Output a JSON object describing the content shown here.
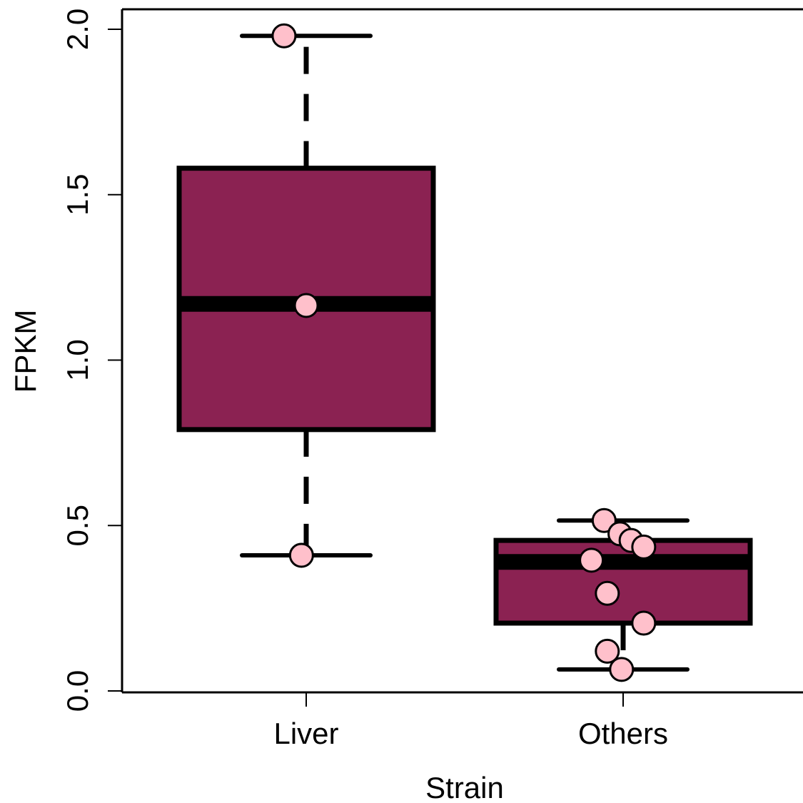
{
  "chart_data": {
    "type": "boxplot",
    "xlabel": "Strain",
    "ylabel": "FPKM",
    "ylim": [
      0.0,
      2.0
    ],
    "yticks": [
      0.0,
      0.5,
      1.0,
      1.5,
      2.0
    ],
    "ytick_labels": [
      "0.0",
      "0.5",
      "1.0",
      "1.5",
      "2.0"
    ],
    "categories": [
      "Liver",
      "Others"
    ],
    "colors": {
      "box_fill": "#8B2252",
      "box_stroke": "#000000",
      "point_fill": "#FFC0CB",
      "point_stroke": "#000000"
    },
    "boxes": [
      {
        "category": "Liver",
        "whisker_low": 0.41,
        "q1": 0.79,
        "median": 1.17,
        "q3": 1.58,
        "whisker_high": 1.98
      },
      {
        "category": "Others",
        "whisker_low": 0.065,
        "q1": 0.205,
        "median": 0.39,
        "q3": 0.455,
        "whisker_high": 0.515
      }
    ],
    "points": [
      {
        "category": "Liver",
        "y": 1.98,
        "jitter": -0.07
      },
      {
        "category": "Liver",
        "y": 1.165,
        "jitter": 0.0
      },
      {
        "category": "Liver",
        "y": 0.41,
        "jitter": -0.015
      },
      {
        "category": "Others",
        "y": 0.515,
        "jitter": -0.06
      },
      {
        "category": "Others",
        "y": 0.475,
        "jitter": -0.01
      },
      {
        "category": "Others",
        "y": 0.455,
        "jitter": 0.025
      },
      {
        "category": "Others",
        "y": 0.435,
        "jitter": 0.065
      },
      {
        "category": "Others",
        "y": 0.395,
        "jitter": -0.1
      },
      {
        "category": "Others",
        "y": 0.295,
        "jitter": -0.05
      },
      {
        "category": "Others",
        "y": 0.205,
        "jitter": 0.065
      },
      {
        "category": "Others",
        "y": 0.12,
        "jitter": -0.05
      },
      {
        "category": "Others",
        "y": 0.065,
        "jitter": -0.005
      }
    ]
  }
}
